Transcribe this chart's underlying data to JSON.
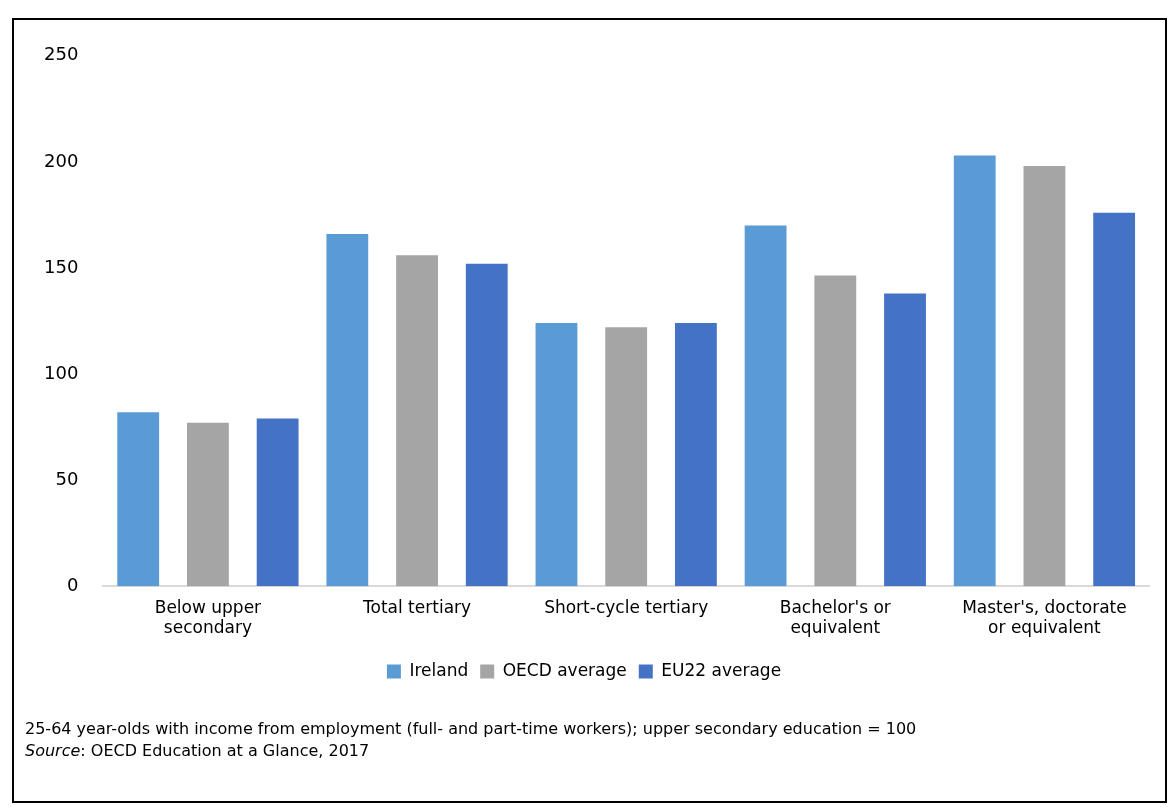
{
  "chart_data": {
    "type": "bar",
    "categories": [
      [
        "Below upper",
        "secondary"
      ],
      "Total tertiary",
      "Short-cycle tertiary",
      [
        "Bachelor's or",
        "equivalent"
      ],
      [
        "Master's, doctorate",
        "or equivalent"
      ]
    ],
    "series": [
      {
        "name": "Ireland",
        "color": "#5b9bd5",
        "values": [
          82,
          166,
          124,
          170,
          203
        ]
      },
      {
        "name": "OECD average",
        "color": "#a5a5a5",
        "values": [
          77,
          156,
          122,
          146.5,
          198
        ]
      },
      {
        "name": "EU22 average",
        "color": "#4472c4",
        "values": [
          79,
          152,
          124,
          138,
          176
        ]
      }
    ],
    "ylim": [
      0,
      250
    ],
    "yticks": [
      0,
      50,
      100,
      150,
      200,
      250
    ],
    "grid": false,
    "legend": "bottom",
    "annotations": [
      "25-64 year-olds with income from employment (full- and part-time workers); upper secondary education = 100",
      "Source: OECD Education at a Glance, 2017"
    ]
  }
}
